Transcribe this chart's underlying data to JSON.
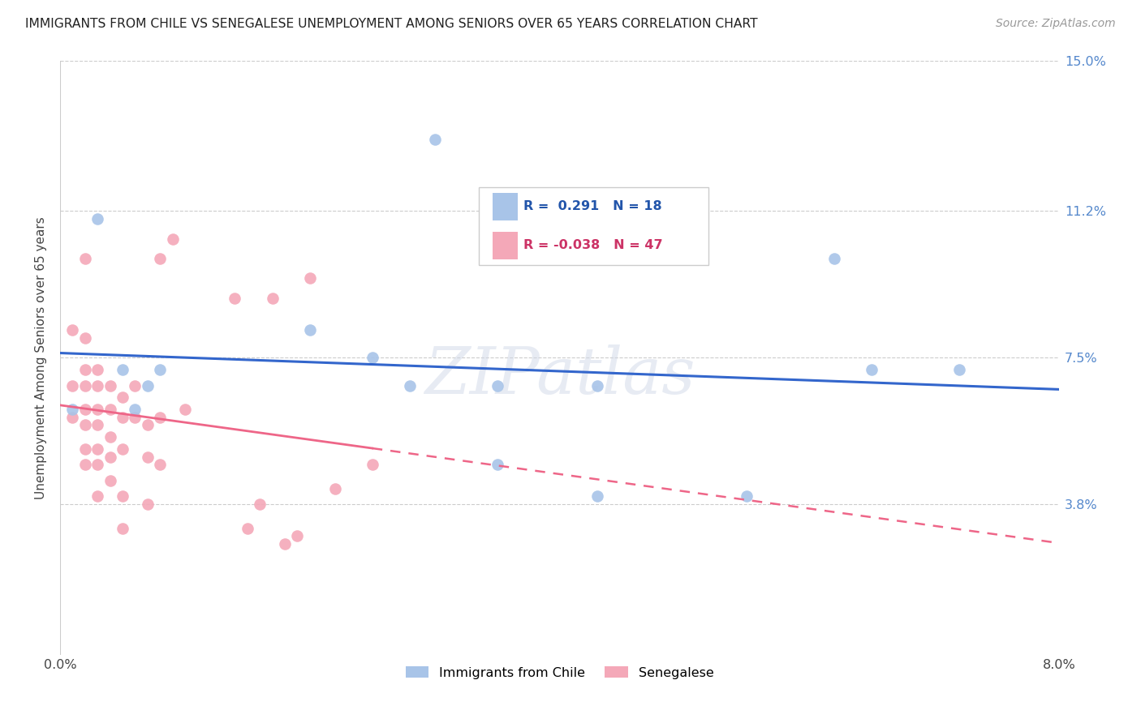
{
  "title": "IMMIGRANTS FROM CHILE VS SENEGALESE UNEMPLOYMENT AMONG SENIORS OVER 65 YEARS CORRELATION CHART",
  "source": "Source: ZipAtlas.com",
  "ylabel": "Unemployment Among Seniors over 65 years",
  "xlim": [
    0.0,
    0.08
  ],
  "ylim": [
    0.0,
    0.15
  ],
  "xticks": [
    0.0,
    0.01,
    0.02,
    0.03,
    0.04,
    0.05,
    0.06,
    0.07,
    0.08
  ],
  "xticklabels": [
    "0.0%",
    "",
    "",
    "",
    "",
    "",
    "",
    "",
    "8.0%"
  ],
  "ytick_positions": [
    0.0,
    0.038,
    0.075,
    0.112,
    0.15
  ],
  "yticklabels_right": [
    "",
    "3.8%",
    "7.5%",
    "11.2%",
    "15.0%"
  ],
  "watermark": "ZIPatlas",
  "chile_color": "#a8c4e8",
  "senegal_color": "#f4a8b8",
  "chile_line_color": "#3366cc",
  "senegal_line_color": "#ee6688",
  "chile_scatter": [
    [
      0.001,
      0.062
    ],
    [
      0.003,
      0.11
    ],
    [
      0.005,
      0.072
    ],
    [
      0.006,
      0.062
    ],
    [
      0.007,
      0.068
    ],
    [
      0.008,
      0.072
    ],
    [
      0.02,
      0.082
    ],
    [
      0.025,
      0.075
    ],
    [
      0.028,
      0.068
    ],
    [
      0.03,
      0.13
    ],
    [
      0.035,
      0.068
    ],
    [
      0.035,
      0.048
    ],
    [
      0.043,
      0.068
    ],
    [
      0.043,
      0.04
    ],
    [
      0.055,
      0.04
    ],
    [
      0.062,
      0.1
    ],
    [
      0.065,
      0.072
    ],
    [
      0.072,
      0.072
    ]
  ],
  "senegal_scatter": [
    [
      0.001,
      0.082
    ],
    [
      0.001,
      0.068
    ],
    [
      0.001,
      0.06
    ],
    [
      0.002,
      0.1
    ],
    [
      0.002,
      0.08
    ],
    [
      0.002,
      0.072
    ],
    [
      0.002,
      0.068
    ],
    [
      0.002,
      0.062
    ],
    [
      0.002,
      0.058
    ],
    [
      0.002,
      0.052
    ],
    [
      0.002,
      0.048
    ],
    [
      0.003,
      0.072
    ],
    [
      0.003,
      0.068
    ],
    [
      0.003,
      0.062
    ],
    [
      0.003,
      0.058
    ],
    [
      0.003,
      0.052
    ],
    [
      0.003,
      0.048
    ],
    [
      0.003,
      0.04
    ],
    [
      0.004,
      0.068
    ],
    [
      0.004,
      0.062
    ],
    [
      0.004,
      0.055
    ],
    [
      0.004,
      0.05
    ],
    [
      0.004,
      0.044
    ],
    [
      0.005,
      0.065
    ],
    [
      0.005,
      0.06
    ],
    [
      0.005,
      0.052
    ],
    [
      0.005,
      0.04
    ],
    [
      0.005,
      0.032
    ],
    [
      0.006,
      0.068
    ],
    [
      0.006,
      0.06
    ],
    [
      0.007,
      0.058
    ],
    [
      0.007,
      0.05
    ],
    [
      0.007,
      0.038
    ],
    [
      0.008,
      0.1
    ],
    [
      0.008,
      0.06
    ],
    [
      0.008,
      0.048
    ],
    [
      0.009,
      0.105
    ],
    [
      0.01,
      0.062
    ],
    [
      0.014,
      0.09
    ],
    [
      0.015,
      0.032
    ],
    [
      0.016,
      0.038
    ],
    [
      0.017,
      0.09
    ],
    [
      0.018,
      0.028
    ],
    [
      0.019,
      0.03
    ],
    [
      0.02,
      0.095
    ],
    [
      0.022,
      0.042
    ],
    [
      0.025,
      0.048
    ]
  ],
  "legend_chile_label": "R =  0.291   N = 18",
  "legend_senegal_label": "R = -0.038   N = 47",
  "legend_chile_color_text": "#2255aa",
  "legend_senegal_color_text": "#cc3366",
  "bottom_legend_chile": "Immigrants from Chile",
  "bottom_legend_senegal": "Senegalese"
}
